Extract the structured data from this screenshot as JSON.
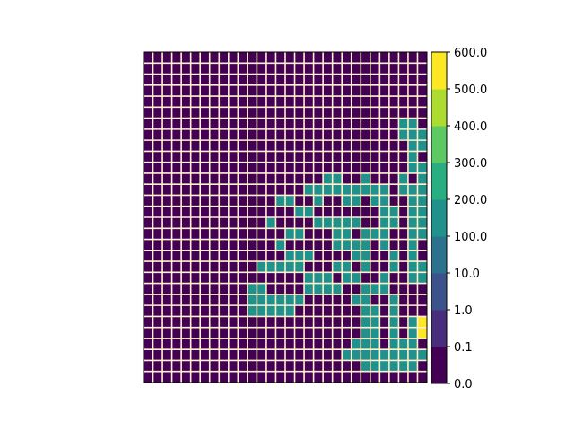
{
  "chart_data": {
    "type": "heatmap",
    "title": "",
    "xlabel": "",
    "ylabel": "",
    "rows": 30,
    "cols": 30,
    "grid": true,
    "gridline_color": "#fff0d0",
    "levels": [
      0.0,
      0.1,
      1.0,
      10.0,
      100.0,
      200.0,
      300.0,
      400.0,
      500.0,
      600.0
    ],
    "colorbar_labels": [
      "0.0",
      "0.1",
      "1.0",
      "10.0",
      "100.0",
      "200.0",
      "300.0",
      "400.0",
      "500.0",
      "600.0"
    ],
    "bin_colors": [
      "#440154",
      "#472d7b",
      "#3b528b",
      "#2c728e",
      "#21918c",
      "#28ae80",
      "#5ec962",
      "#addc30",
      "#fde725"
    ],
    "row_order": "top-to-bottom",
    "matrix": [
      "000000000000000000000000000000",
      "000000000000000000000000000000",
      "000000000000000000000000000000",
      "000000000000000000000000000000",
      "000000000000000000000000000000",
      "000000000000000000000000000000",
      "000000000000000000000000000440",
      "000000000000000000000000000444",
      "000000000000000000000000000044",
      "000000000000000000000000000040",
      "000000000000000000000000000044",
      "000000000000000000044004000404",
      "000000000000000004444444440444",
      "000000000000004440400440440044",
      "000000000000000044000000044044",
      "000000000000000000444440044044",
      "000000000000000000004404440044",
      "000000000000000000004444040040",
      "000000000000000444000044004040",
      "000000000000000000004404004044",
      "000000000000000000000440040044",
      "000000000000000004444004440000",
      "000000000000000000000044004000",
      "000000000000000000000004404000",
      "000000000000000000000004404044",
      "000000000000000000000004404044",
      "000000000000000000000004404440",
      "000000000000000000000004444444",
      "000000000000000000000000044440",
      "000000000000000000000000000000"
    ],
    "overrides": [
      {
        "row": 13,
        "col": 16,
        "bin": 0
      },
      {
        "row": 15,
        "col": 13,
        "bin": 4
      },
      {
        "row": 16,
        "col": 15,
        "bin": 4
      },
      {
        "row": 16,
        "col": 16,
        "bin": 4
      },
      {
        "row": 17,
        "col": 14,
        "bin": 4
      },
      {
        "row": 19,
        "col": 12,
        "bin": 4
      },
      {
        "row": 19,
        "col": 13,
        "bin": 4
      },
      {
        "row": 19,
        "col": 14,
        "bin": 4
      },
      {
        "row": 19,
        "col": 15,
        "bin": 4
      },
      {
        "row": 19,
        "col": 16,
        "bin": 4
      },
      {
        "row": 20,
        "col": 17,
        "bin": 4
      },
      {
        "row": 20,
        "col": 18,
        "bin": 4
      },
      {
        "row": 20,
        "col": 19,
        "bin": 4
      },
      {
        "row": 21,
        "col": 11,
        "bin": 4
      },
      {
        "row": 21,
        "col": 12,
        "bin": 4
      },
      {
        "row": 22,
        "col": 11,
        "bin": 4
      },
      {
        "row": 22,
        "col": 12,
        "bin": 4
      },
      {
        "row": 22,
        "col": 13,
        "bin": 4
      },
      {
        "row": 22,
        "col": 14,
        "bin": 4
      },
      {
        "row": 22,
        "col": 15,
        "bin": 4
      },
      {
        "row": 22,
        "col": 16,
        "bin": 4
      },
      {
        "row": 23,
        "col": 11,
        "bin": 4
      },
      {
        "row": 23,
        "col": 12,
        "bin": 4
      },
      {
        "row": 23,
        "col": 13,
        "bin": 4
      },
      {
        "row": 23,
        "col": 14,
        "bin": 4
      },
      {
        "row": 23,
        "col": 15,
        "bin": 4
      },
      {
        "row": 24,
        "col": 29,
        "bin": 8
      },
      {
        "row": 25,
        "col": 29,
        "bin": 8
      },
      {
        "row": 26,
        "col": 22,
        "bin": 4
      },
      {
        "row": 27,
        "col": 21,
        "bin": 4
      },
      {
        "row": 27,
        "col": 22,
        "bin": 4
      },
      {
        "row": 27,
        "col": 23,
        "bin": 4
      },
      {
        "row": 28,
        "col": 23,
        "bin": 4
      },
      {
        "row": 28,
        "col": 24,
        "bin": 4
      },
      {
        "row": 28,
        "col": 25,
        "bin": 4
      }
    ]
  }
}
